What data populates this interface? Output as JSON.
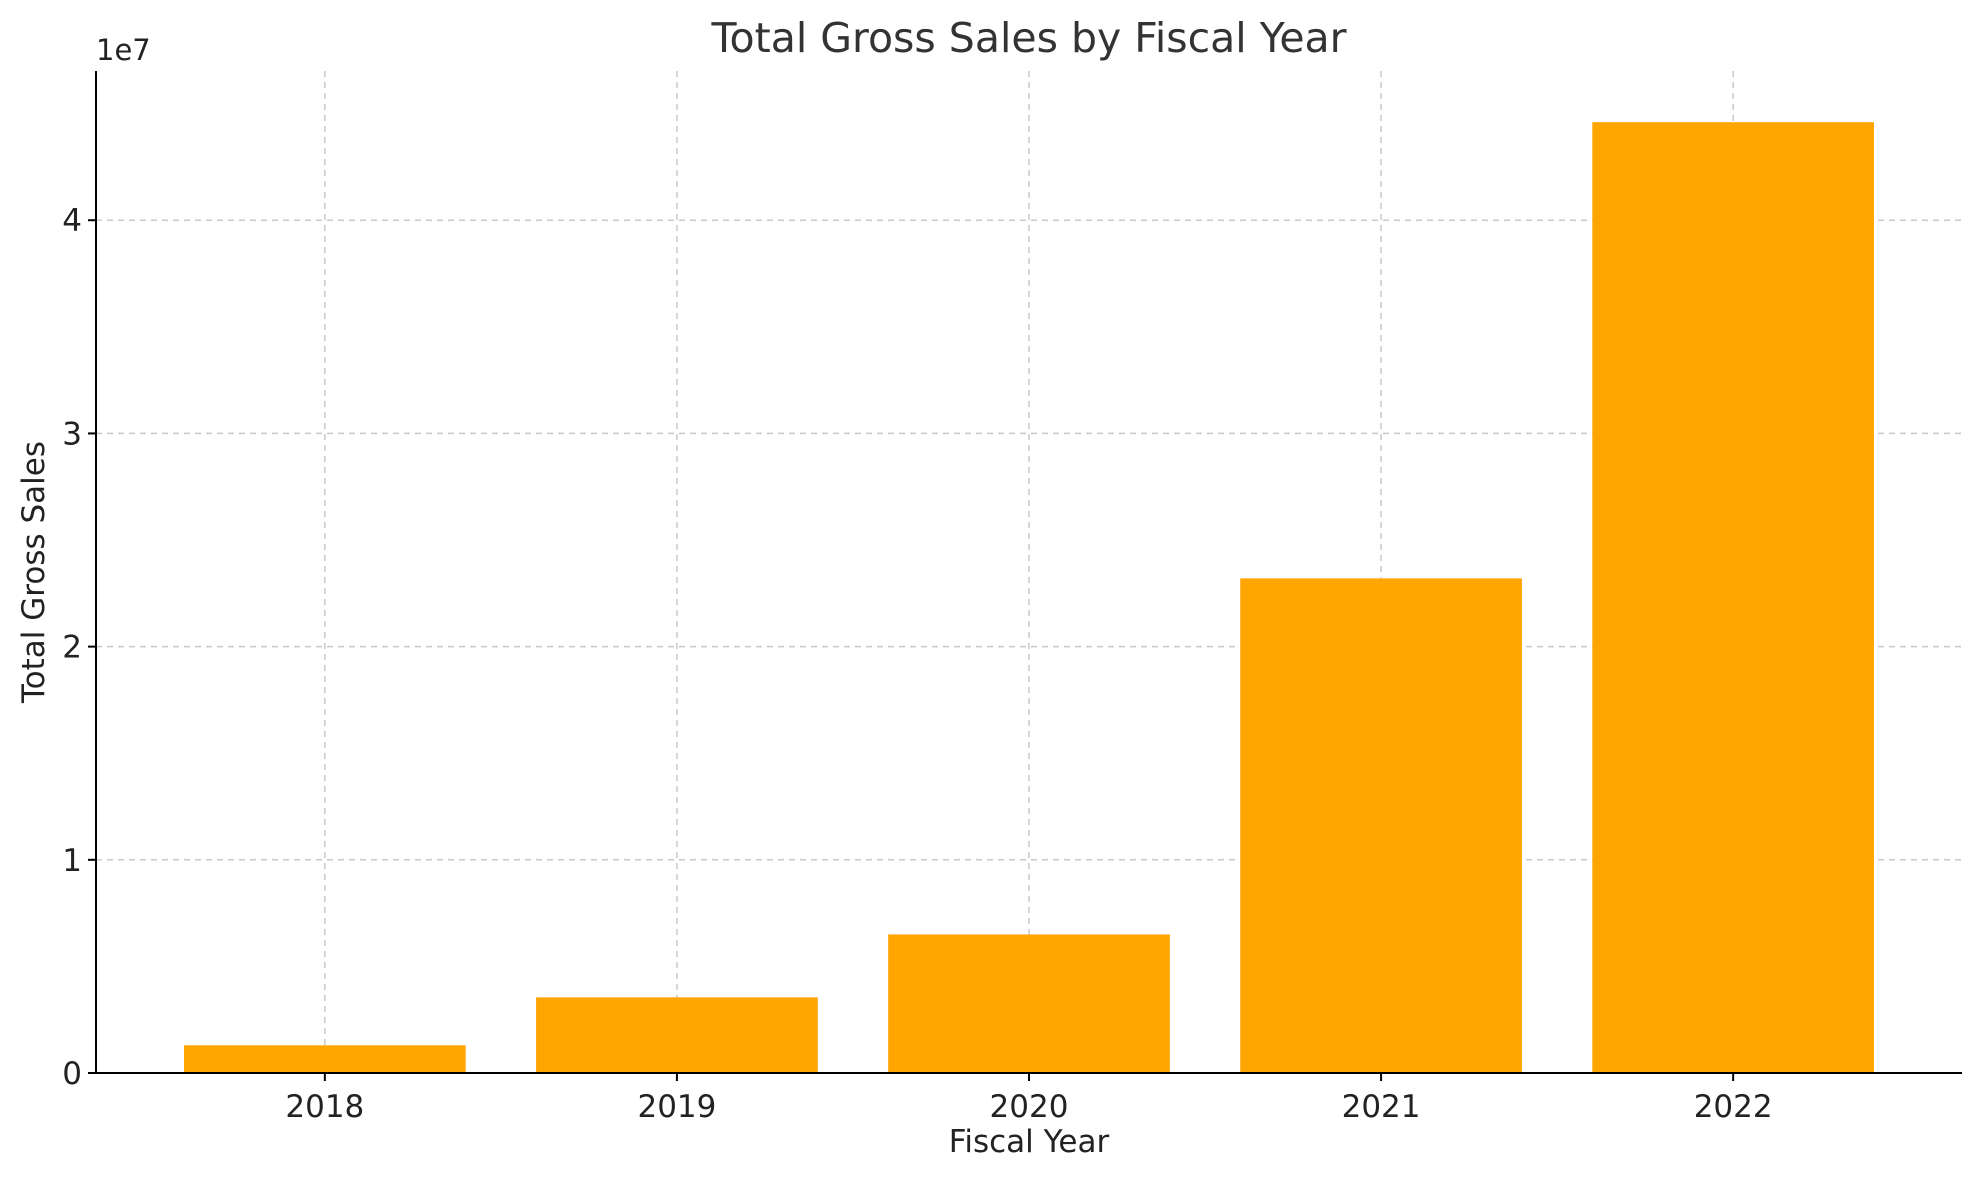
{
  "chart_data": {
    "type": "bar",
    "title": "Total Gross Sales by Fiscal Year",
    "xlabel": "Fiscal Year",
    "ylabel": "Total Gross Sales",
    "y_offset_label": "1e7",
    "categories": [
      "2018",
      "2019",
      "2020",
      "2021",
      "2022"
    ],
    "values": [
      1300000,
      3550000,
      6500000,
      23200000,
      44600000
    ],
    "ylim": [
      0,
      47000000
    ],
    "y_ticks": [
      0,
      10000000,
      20000000,
      30000000,
      40000000
    ],
    "y_tick_labels": [
      "0",
      "1",
      "2",
      "3",
      "4"
    ],
    "grid": true,
    "colors": {
      "bar": "#FFA500",
      "grid": "#c8c8c8",
      "axis": "#000000"
    }
  }
}
